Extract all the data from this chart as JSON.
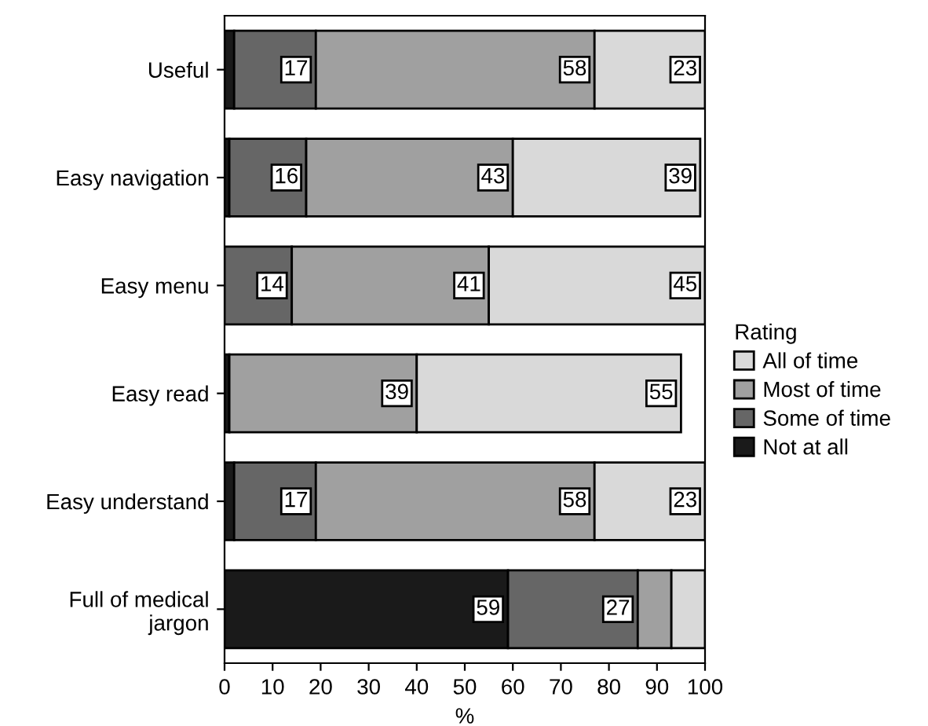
{
  "chart_data": {
    "type": "bar",
    "orientation": "horizontal",
    "stacked": true,
    "xlabel": "%",
    "legend_title": "Rating",
    "legend": "right",
    "grid": false,
    "categories": [
      "Useful",
      "Easy navigation",
      "Easy menu",
      "Easy read",
      "Easy understand",
      "Full of medical\njargon"
    ],
    "xlim": [
      0,
      100
    ],
    "xticks": [
      0,
      10,
      20,
      30,
      40,
      50,
      60,
      70,
      80,
      90,
      100
    ],
    "series": [
      {
        "name": "Not at all",
        "color": "#1a1a1a",
        "values": [
          2,
          1,
          0,
          1,
          2,
          59
        ],
        "value_labels": [
          null,
          null,
          null,
          null,
          null,
          "59"
        ]
      },
      {
        "name": "Some of time",
        "color": "#666666",
        "values": [
          17,
          16,
          14,
          0,
          17,
          27
        ],
        "value_labels": [
          "17",
          "16",
          "14",
          null,
          "17",
          "27"
        ]
      },
      {
        "name": "Most of time",
        "color": "#a0a0a0",
        "values": [
          58,
          43,
          41,
          39,
          58,
          7
        ],
        "value_labels": [
          "58",
          "43",
          "41",
          "39",
          "58",
          null
        ]
      },
      {
        "name": "All of time",
        "color": "#d9d9d9",
        "values": [
          23,
          39,
          45,
          55,
          23,
          7
        ],
        "value_labels": [
          "23",
          "39",
          "45",
          "55",
          "23",
          null
        ]
      }
    ]
  }
}
